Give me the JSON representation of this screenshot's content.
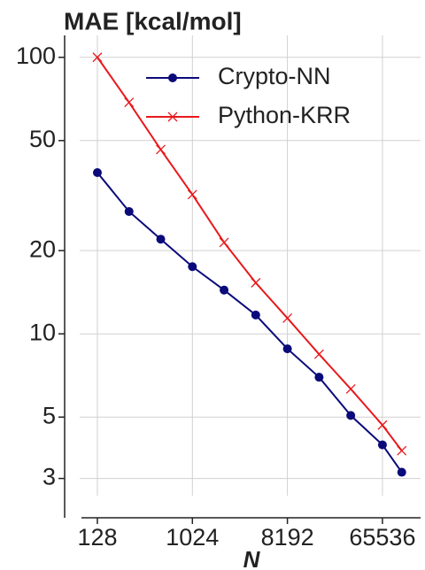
{
  "chart_data": {
    "type": "line",
    "title": "MAE [kcal/mol]",
    "x_label": "N",
    "x": [
      128,
      256,
      512,
      1024,
      2048,
      4096,
      8192,
      16384,
      32768,
      65536,
      100000
    ],
    "series": [
      {
        "name": "Crypto-NN",
        "color": "#0a0a7a",
        "marker": "circle",
        "values": [
          38.3,
          27.7,
          22.0,
          17.5,
          14.4,
          11.7,
          8.83,
          6.97,
          5.07,
          3.97,
          3.16
        ]
      },
      {
        "name": "Python-KRR",
        "color": "#e8191c",
        "marker": "x",
        "values": [
          100,
          68.7,
          46.4,
          31.9,
          21.4,
          15.3,
          11.4,
          8.44,
          6.32,
          4.68,
          3.78
        ]
      }
    ],
    "xscale": "log2",
    "yscale": "log",
    "xlim": [
      65,
      151000
    ],
    "xticks": [
      128,
      1024,
      8192,
      65536
    ],
    "ylim": [
      2.6,
      120
    ],
    "yticks": [
      3,
      5,
      10,
      20,
      50,
      100
    ],
    "grid": true,
    "legend": "upper right"
  }
}
